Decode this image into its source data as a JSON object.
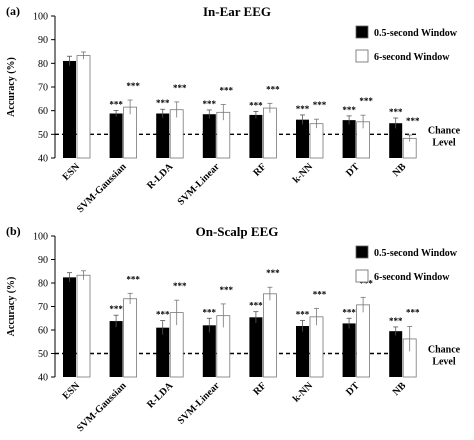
{
  "colors": {
    "window_05": "#000000",
    "window_6": "#ffffff",
    "axis": "#000000"
  },
  "chart_data": [
    {
      "panel_label": "(a)",
      "type": "bar",
      "title": "In-Ear EEG",
      "ylabel": "Accuracy (%)",
      "ylim": [
        40,
        100
      ],
      "yticks": [
        40,
        50,
        60,
        70,
        80,
        90,
        100
      ],
      "categories": [
        "ESN",
        "SVM-Gaussian",
        "R-LDA",
        "SVM-Linear",
        "RF",
        "k-NN",
        "DT",
        "NB"
      ],
      "series": [
        {
          "name": "0.5-second Window",
          "values": [
            81,
            58.8,
            58.8,
            58.5,
            58.2,
            56.2,
            56,
            54.7
          ],
          "errors": [
            2,
            1.3,
            1.8,
            1.8,
            1.5,
            2,
            1.8,
            2.2
          ]
        },
        {
          "name": "6-second Window",
          "values": [
            83.3,
            61.5,
            60.4,
            59.3,
            61.1,
            54.5,
            55.3,
            48.3
          ],
          "errors": [
            1.5,
            3,
            3.3,
            3.3,
            2,
            1.9,
            2.8,
            1.4
          ]
        }
      ],
      "significance": [
        [
          "",
          ""
        ],
        [
          "***",
          "***"
        ],
        [
          "***",
          "***"
        ],
        [
          "***",
          "***"
        ],
        [
          "***",
          "***"
        ],
        [
          "***",
          "***"
        ],
        [
          "***",
          "***"
        ],
        [
          "***",
          "***"
        ]
      ],
      "reference_line": {
        "value": 50,
        "label": "Chance Level"
      },
      "legend": "top-right"
    },
    {
      "panel_label": "(b)",
      "type": "bar",
      "title": "On-Scalp EEG",
      "ylabel": "Accuracy (%)",
      "ylim": [
        40,
        100
      ],
      "yticks": [
        40,
        50,
        60,
        70,
        80,
        90,
        100
      ],
      "categories": [
        "ESN",
        "SVM-Gaussian",
        "R-LDA",
        "SVM-Linear",
        "RF",
        "k-NN",
        "DT",
        "NB"
      ],
      "series": [
        {
          "name": "0.5-second Window",
          "values": [
            82.4,
            63.8,
            61,
            62,
            65.4,
            61.7,
            62.8,
            59.5
          ],
          "errors": [
            2,
            2.5,
            3,
            3,
            2.4,
            2.4,
            2.2,
            1.8
          ]
        },
        {
          "name": "6-second Window",
          "values": [
            83.3,
            73.3,
            67.4,
            66.1,
            75.4,
            65.6,
            70.7,
            56.2
          ],
          "errors": [
            1.9,
            2.3,
            5.3,
            5,
            2.8,
            3.6,
            3.2,
            5.3
          ]
        }
      ],
      "significance": [
        [
          "",
          ""
        ],
        [
          "***",
          "***"
        ],
        [
          "***",
          "***"
        ],
        [
          "***",
          "***"
        ],
        [
          "***",
          "***"
        ],
        [
          "***",
          "***"
        ],
        [
          "***",
          "***"
        ],
        [
          "***",
          "***"
        ]
      ],
      "reference_line": {
        "value": 50,
        "label": "Chance Level"
      },
      "legend": "top-right"
    }
  ]
}
